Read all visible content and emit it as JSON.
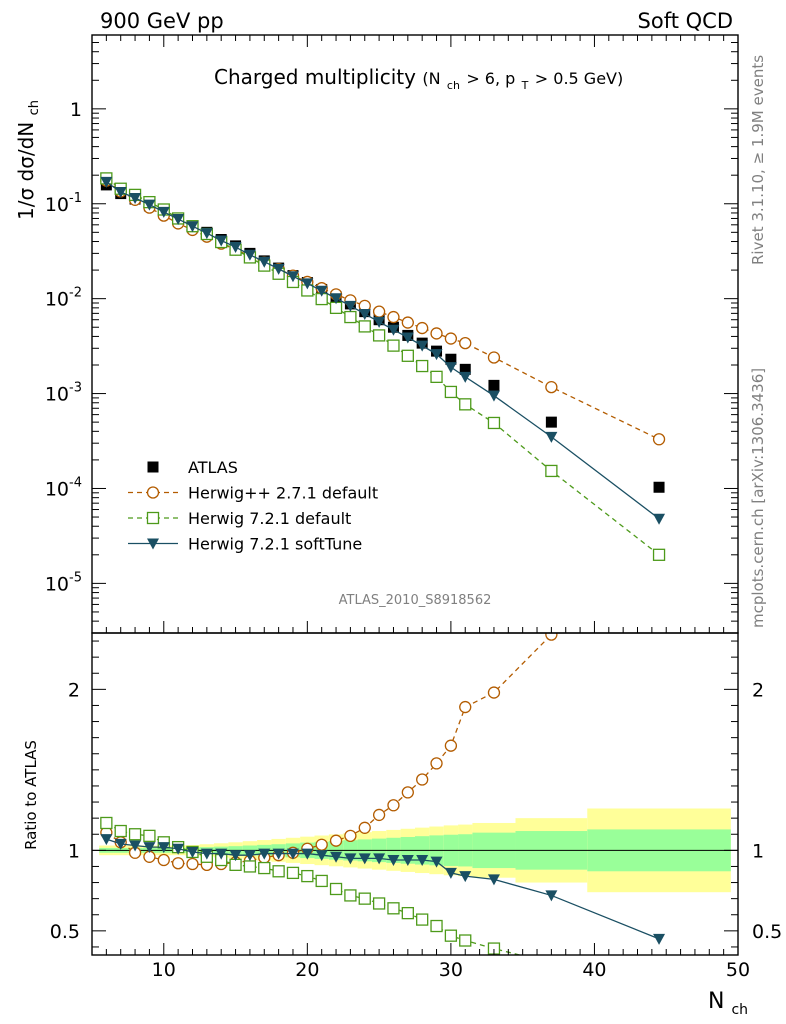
{
  "header": {
    "left": "900 GeV pp",
    "right": "Soft QCD"
  },
  "plot_title": {
    "main": "Charged multiplicity",
    "cond_open": "(N",
    "cond_sub1": "ch",
    "cond_mid": " > 6, p",
    "cond_sub2": "T",
    "cond_close": " > 0.5 GeV)"
  },
  "side_labels": {
    "rivet": "Rivet 3.1.10, ≥ 1.9M events",
    "mcplots": "mcplots.cern.ch [arXiv:1306.3436]"
  },
  "analysis_id": "ATLAS_2010_S8918562",
  "colors": {
    "atlas": "#000000",
    "herwigpp": "#b35c00",
    "herwig_default": "#4d9a1a",
    "herwig_soft": "#1a4f63",
    "band_outer": "#ffff99",
    "band_inner": "#99ff99",
    "side_text": "#808080"
  },
  "chart_data": {
    "type": "scatter",
    "x": [
      6,
      7,
      8,
      9,
      10,
      11,
      12,
      13,
      14,
      15,
      16,
      17,
      18,
      19,
      20,
      21,
      22,
      23,
      24,
      25,
      26,
      27,
      28,
      29,
      30,
      31,
      33,
      37,
      44.5
    ],
    "x_bin_edges": [
      5.5,
      6.5,
      7.5,
      8.5,
      9.5,
      10.5,
      11.5,
      12.5,
      13.5,
      14.5,
      15.5,
      16.5,
      17.5,
      18.5,
      19.5,
      20.5,
      21.5,
      22.5,
      23.5,
      24.5,
      25.5,
      26.5,
      27.5,
      28.5,
      29.5,
      30.5,
      31.5,
      34.5,
      39.5,
      49.5
    ],
    "xlabel": "N",
    "xlabel_sub": "ch",
    "xlim": [
      5,
      50
    ],
    "x_ticks": [
      10,
      20,
      30,
      40,
      50
    ],
    "top_panel": {
      "ylabel": "1/σ dσ/dN",
      "ylabel_sub": "ch",
      "yscale": "log",
      "ylim": [
        3e-06,
        6
      ],
      "y_ticks": [
        1e-05,
        0.0001,
        0.001,
        0.01,
        0.1,
        1
      ],
      "y_tick_labels": [
        {
          "base": "10",
          "exp": "-5"
        },
        {
          "base": "10",
          "exp": "-4"
        },
        {
          "base": "10",
          "exp": "-3"
        },
        {
          "base": "10",
          "exp": "-2"
        },
        {
          "base": "10",
          "exp": "-1"
        },
        {
          "base": "1",
          "exp": ""
        }
      ]
    },
    "ratio_panel": {
      "ylabel": "Ratio to ATLAS",
      "ylim": [
        0.35,
        2.35
      ],
      "y_ticks": [
        0.5,
        1,
        2
      ],
      "y_tick_labels": [
        "0.5",
        "1",
        "2"
      ],
      "band_inner": [
        0.015,
        0.015,
        0.015,
        0.015,
        0.015,
        0.015,
        0.017,
        0.02,
        0.023,
        0.026,
        0.03,
        0.034,
        0.038,
        0.043,
        0.048,
        0.053,
        0.058,
        0.063,
        0.068,
        0.073,
        0.078,
        0.083,
        0.088,
        0.093,
        0.097,
        0.1,
        0.11,
        0.12,
        0.13
      ],
      "band_outer": [
        0.03,
        0.03,
        0.03,
        0.03,
        0.03,
        0.03,
        0.033,
        0.038,
        0.044,
        0.05,
        0.057,
        0.064,
        0.071,
        0.078,
        0.085,
        0.092,
        0.099,
        0.106,
        0.113,
        0.12,
        0.127,
        0.134,
        0.141,
        0.148,
        0.155,
        0.16,
        0.17,
        0.2,
        0.26
      ]
    },
    "series": [
      {
        "name": "ATLAS",
        "marker": "square-filled",
        "line": "none",
        "color": "#000000",
        "values": [
          0.158,
          0.128,
          0.112,
          0.095,
          0.08,
          0.068,
          0.058,
          0.05,
          0.042,
          0.036,
          0.03,
          0.025,
          0.021,
          0.0175,
          0.0148,
          0.0125,
          0.0105,
          0.0088,
          0.0073,
          0.006,
          0.005,
          0.0041,
          0.0034,
          0.0028,
          0.0023,
          0.0018,
          0.00122,
          0.0005,
          0.000103
        ],
        "ratio": [
          1,
          1,
          1,
          1,
          1,
          1,
          1,
          1,
          1,
          1,
          1,
          1,
          1,
          1,
          1,
          1,
          1,
          1,
          1,
          1,
          1,
          1,
          1,
          1,
          1,
          1,
          1,
          1,
          1
        ]
      },
      {
        "name": "Herwig++ 2.7.1 default",
        "marker": "circle-open",
        "line": "dashed",
        "color": "#b35c00",
        "values": [
          0.175,
          0.135,
          0.11,
          0.091,
          0.075,
          0.062,
          0.053,
          0.045,
          0.038,
          0.033,
          0.028,
          0.024,
          0.0205,
          0.0175,
          0.015,
          0.0129,
          0.0111,
          0.0096,
          0.0084,
          0.0073,
          0.0064,
          0.0056,
          0.0049,
          0.0043,
          0.0038,
          0.0034,
          0.0024,
          0.00117,
          0.00033
        ],
        "ratio": [
          1.11,
          1.05,
          0.985,
          0.96,
          0.94,
          0.92,
          0.915,
          0.91,
          0.915,
          0.925,
          0.935,
          0.955,
          0.97,
          0.985,
          1.01,
          1.035,
          1.06,
          1.09,
          1.14,
          1.22,
          1.28,
          1.36,
          1.44,
          1.54,
          1.65,
          1.89,
          1.98,
          2.34,
          3.2
        ]
      },
      {
        "name": "Herwig 7.2.1 default",
        "marker": "square-open",
        "line": "dashed",
        "color": "#4d9a1a",
        "values": [
          0.185,
          0.144,
          0.124,
          0.104,
          0.087,
          0.07,
          0.058,
          0.048,
          0.0395,
          0.0328,
          0.0272,
          0.0223,
          0.0183,
          0.015,
          0.0122,
          0.0099,
          0.008,
          0.0064,
          0.0051,
          0.0041,
          0.0032,
          0.0025,
          0.00195,
          0.0015,
          0.00104,
          0.00077,
          0.00049,
          0.000153,
          2e-05
        ],
        "ratio": [
          1.17,
          1.12,
          1.1,
          1.09,
          1.05,
          1.02,
          0.99,
          0.96,
          0.94,
          0.91,
          0.9,
          0.89,
          0.87,
          0.86,
          0.84,
          0.81,
          0.76,
          0.72,
          0.7,
          0.67,
          0.64,
          0.61,
          0.57,
          0.53,
          0.47,
          0.44,
          0.39,
          0.3,
          0.19
        ]
      },
      {
        "name": "Herwig 7.2.1 softTune",
        "marker": "triangle-down-filled",
        "line": "solid",
        "color": "#1a4f63",
        "values": [
          0.17,
          0.133,
          0.115,
          0.098,
          0.082,
          0.069,
          0.058,
          0.049,
          0.041,
          0.035,
          0.029,
          0.0245,
          0.0206,
          0.0172,
          0.0145,
          0.0121,
          0.0101,
          0.0084,
          0.0069,
          0.0057,
          0.0047,
          0.0039,
          0.0032,
          0.0026,
          0.0019,
          0.0015,
          0.00095,
          0.00035,
          4.8e-05
        ],
        "ratio": [
          1.07,
          1.04,
          1.03,
          1.02,
          1.02,
          1.01,
          0.99,
          0.98,
          0.98,
          0.97,
          0.97,
          0.98,
          0.98,
          0.98,
          0.98,
          0.97,
          0.96,
          0.95,
          0.95,
          0.95,
          0.94,
          0.94,
          0.94,
          0.93,
          0.86,
          0.84,
          0.82,
          0.72,
          0.45
        ]
      }
    ]
  }
}
